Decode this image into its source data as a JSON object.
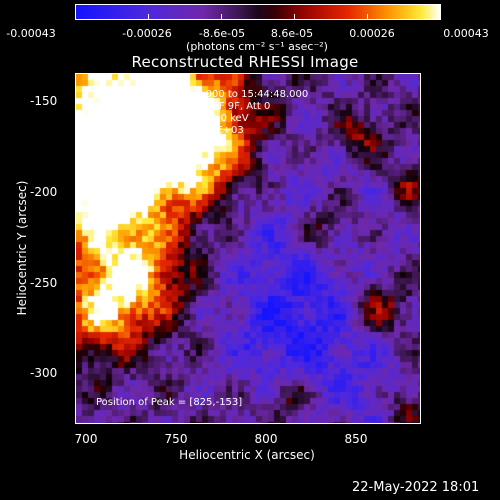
{
  "colorbar": {
    "tick_labels": [
      "-0.00043",
      "-0.00026",
      "-8.6e-05",
      "8.6e-05",
      "0.00026",
      "0.00043"
    ],
    "units": "(photons cm⁻² s⁻¹ asec⁻²)"
  },
  "title": "Reconstructed RHESSI Image",
  "info": {
    "time_range": "4-Aug-2015 15:42:44.000 to 15:44:48.000",
    "detectors": "Detectors: 3F 5F 6F 7F 8F 9F, Att 0",
    "energy": "Energy Range: 25.0 - 50.0 keV",
    "clean": "Clean   Total counts: 2.98E+03",
    "peak": "Position of Peak = [825,-153]"
  },
  "axes": {
    "xlabel": "Heliocentric X (arcsec)",
    "ylabel": "Heliocentric Y (arcsec)",
    "xticks": [
      "700",
      "750",
      "800",
      "850"
    ],
    "yticks": [
      "-150",
      "-200",
      "-250",
      "-300"
    ]
  },
  "footer": {
    "date": "22-May-2022 18:01"
  },
  "colors": {
    "background": "#000000",
    "foreground": "#ffffff"
  }
}
